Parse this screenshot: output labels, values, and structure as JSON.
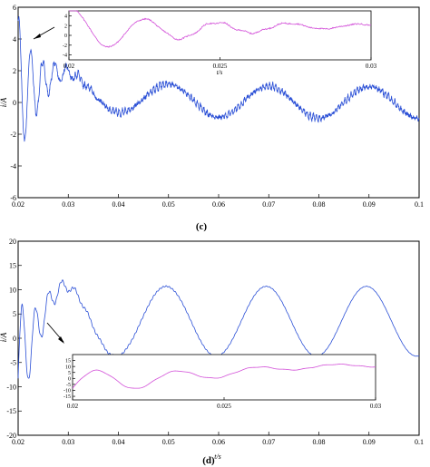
{
  "chart_data": [
    {
      "type": "line",
      "panel_label": "(c)",
      "ylabel": "i/A",
      "xlabel": "",
      "xlim": [
        0.02,
        0.1
      ],
      "ylim": [
        -6,
        6
      ],
      "x_ticks": [
        "0.02",
        "0.03",
        "0.04",
        "0.05",
        "0.06",
        "0.07",
        "0.08",
        "0.09",
        "0.1"
      ],
      "y_ticks": [
        "-6",
        "-4",
        "-2",
        "0",
        "2",
        "4",
        "6"
      ],
      "grid": false,
      "series_color": "#2a4fd6",
      "signal": {
        "dc_offset_initial": 2.0,
        "dc_decay_time_s": 0.012,
        "fundamental_amplitude": 1.0,
        "fundamental_frequency_hz": 50,
        "fundamental_peak_at_s": 0.05,
        "transient_amplitude_initial": 4.5,
        "transient_decay_time_s": 0.004,
        "ripple_amplitude": 0.22,
        "ripple_frequency_hz": 1600
      },
      "inset": {
        "xlabel": "t/s",
        "xlim": [
          0.02,
          0.03
        ],
        "ylim": [
          -5,
          5
        ],
        "x_ticks": [
          "0.02",
          "0.025",
          "0.03"
        ],
        "y_ticks": [
          "4",
          "2",
          "0",
          "-2",
          "-4"
        ],
        "series_color": "#d24fd8"
      }
    },
    {
      "type": "line",
      "panel_label": "(d)",
      "ylabel": "i/A",
      "xlabel": "t/s",
      "xlim": [
        0.02,
        0.1
      ],
      "ylim": [
        -20,
        20
      ],
      "x_ticks": [
        "0.02",
        "0.03",
        "0.04",
        "0.05",
        "0.06",
        "0.07",
        "0.08",
        "0.09",
        "0.1"
      ],
      "y_ticks": [
        "-20",
        "-15",
        "-10",
        "-5",
        "0",
        "5",
        "10",
        "15",
        "20"
      ],
      "grid": false,
      "series_color": "#2a4fd6",
      "signal": {
        "dc_offset": 3.5,
        "fundamental_amplitude": 7.2,
        "fundamental_frequency_hz": 50,
        "fundamental_peak_at_s": 0.0495,
        "transient_amplitude_initial": 12,
        "transient_decay_time_s": 0.004,
        "ripple_amplitude": 0.35,
        "ripple_frequency_hz": 1600,
        "ripple_decay_time_s": 0.03
      },
      "inset": {
        "xlabel": "t/s",
        "xlim": [
          0.02,
          0.03
        ],
        "ylim": [
          -18,
          20
        ],
        "x_ticks": [
          "0.02",
          "0.025",
          "0.03"
        ],
        "y_ticks": [
          "15",
          "10",
          "5",
          "0",
          "-5",
          "-10",
          "-15"
        ],
        "series_color": "#d24fd8"
      }
    }
  ]
}
